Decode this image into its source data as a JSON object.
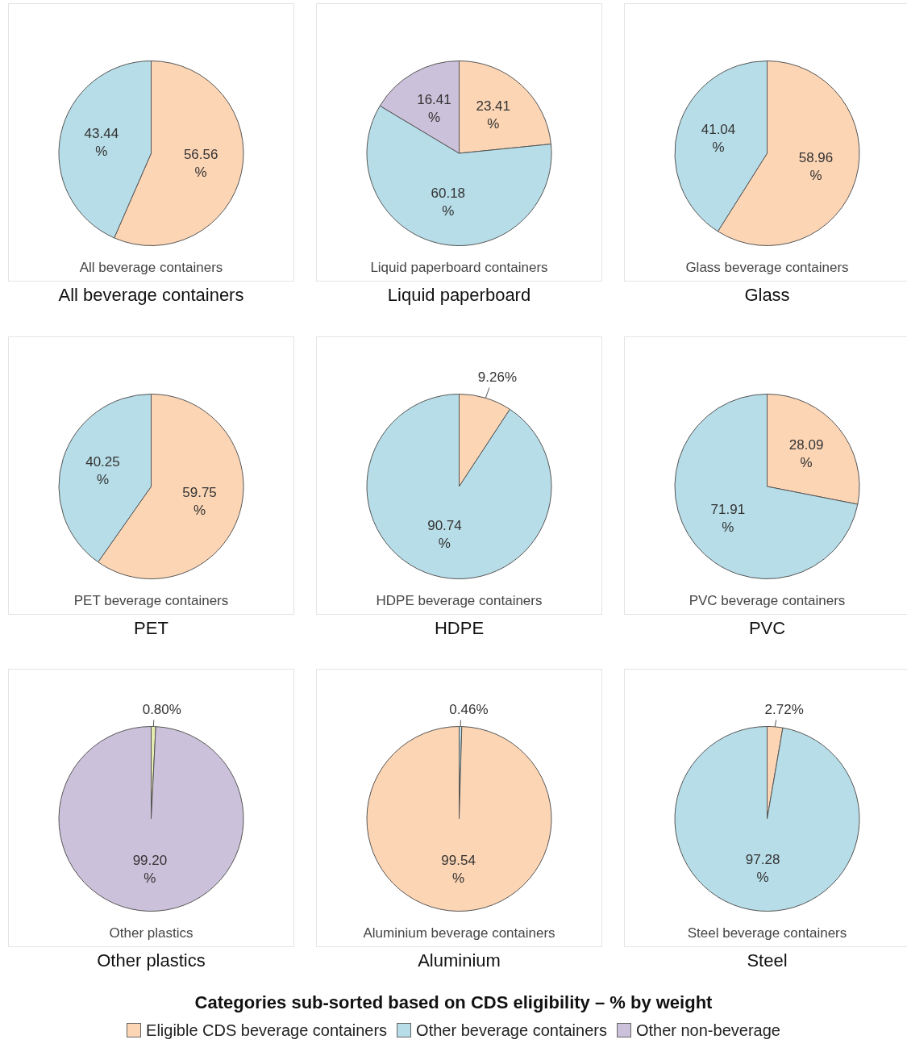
{
  "chart_data": [
    {
      "type": "pie",
      "title": "All beverage containers",
      "xlabel": "All beverage containers",
      "categories": [
        null,
        null
      ],
      "values": [
        56.56,
        43.44
      ],
      "colors": [
        "#fcd5b5",
        "#b7dde8"
      ],
      "value_labels": [
        "56.56 %",
        "43.44 %"
      ]
    },
    {
      "type": "pie",
      "title": "Liquid paperboard",
      "xlabel": "Liquid paperboard containers",
      "categories": [
        "Eligible CDS beverage containers",
        "Other beverage containers",
        "Other non-beverage"
      ],
      "values": [
        23.41,
        60.18,
        16.41
      ],
      "colors": [
        "#fcd5b5",
        "#b7dde8",
        "#ccc1da"
      ],
      "value_labels": [
        "23.41 %",
        "60.18 %",
        "16.41 %"
      ],
      "legend": "bottom",
      "legend_title": "Categories sub-sorted based on CDS eligibility – % by weight"
    },
    {
      "type": "pie",
      "title": "Glass",
      "xlabel": "Glass beverage containers",
      "categories": [
        null,
        null
      ],
      "values": [
        58.96,
        41.04
      ],
      "colors": [
        "#fcd5b5",
        "#b7dde8"
      ],
      "value_labels": [
        "58.96 %",
        "41.04 %"
      ]
    },
    {
      "type": "pie",
      "title": "PET",
      "xlabel": "PET beverage containers",
      "categories": [
        null,
        null
      ],
      "values": [
        59.75,
        40.25
      ],
      "colors": [
        "#fcd5b5",
        "#b7dde8"
      ],
      "value_labels": [
        "59.75 %",
        "40.25 %"
      ]
    },
    {
      "type": "pie",
      "title": "HDPE",
      "xlabel": "HDPE beverage containers",
      "categories": [
        null,
        null
      ],
      "values": [
        9.26,
        90.74
      ],
      "colors": [
        "#fcd5b5",
        "#b7dde8"
      ],
      "value_labels": [
        "9.26%",
        "90.74 %"
      ]
    },
    {
      "type": "pie",
      "title": "PVC",
      "xlabel": "PVC beverage containers",
      "categories": [
        null,
        null
      ],
      "values": [
        28.09,
        71.91
      ],
      "colors": [
        "#fcd5b5",
        "#b7dde8"
      ],
      "value_labels": [
        "28.09 %",
        "71.91 %"
      ]
    },
    {
      "type": "pie",
      "title": "Other plastics",
      "xlabel": "Other plastics",
      "categories": [
        null,
        null
      ],
      "values": [
        0.8,
        99.2
      ],
      "colors": [
        "#e6ecb0",
        "#ccc1da"
      ],
      "value_labels": [
        "0.80%",
        "99.20 %"
      ]
    },
    {
      "type": "pie",
      "title": "Aluminium",
      "xlabel": "Aluminium  beverage containers",
      "categories": [
        null,
        null
      ],
      "values": [
        0.46,
        99.54
      ],
      "colors": [
        "#b7dde8",
        "#fcd5b5"
      ],
      "value_labels": [
        "0.46%",
        "99.54 %"
      ]
    },
    {
      "type": "pie",
      "title": "Steel",
      "xlabel": "Steel beverage containers",
      "categories": [
        null,
        null
      ],
      "values": [
        2.72,
        97.28
      ],
      "colors": [
        "#fcd5b5",
        "#b7dde8"
      ],
      "value_labels": [
        "2.72%",
        "97.28 %"
      ]
    }
  ]
}
